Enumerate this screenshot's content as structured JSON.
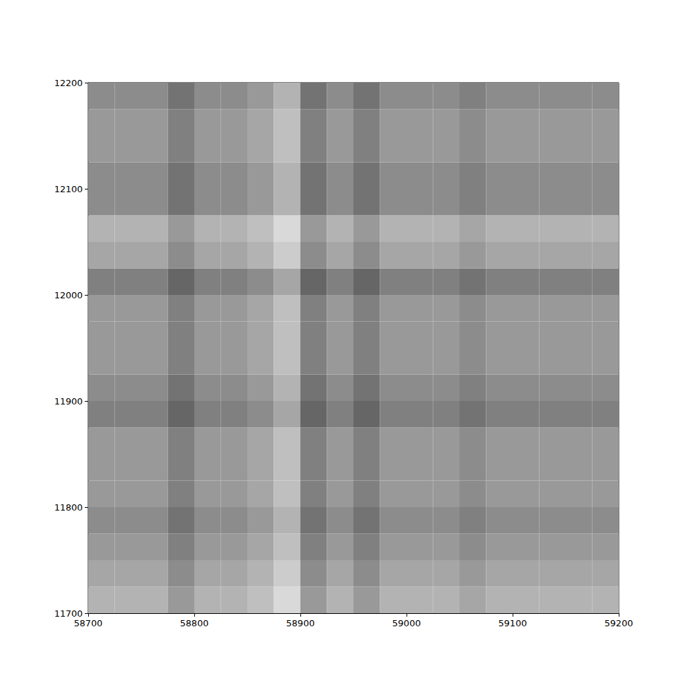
{
  "chart_data": {
    "type": "heatmap",
    "x_edges": [
      58700,
      58725,
      58750,
      58775,
      58800,
      58825,
      58850,
      58875,
      58900,
      58925,
      58950,
      58975,
      59000,
      59025,
      59050,
      59075,
      59100,
      59125,
      59150,
      59175,
      59200
    ],
    "y_edges": [
      11700,
      11725,
      11750,
      11775,
      11800,
      11825,
      11850,
      11875,
      11900,
      11925,
      11950,
      11975,
      12000,
      12025,
      12050,
      12075,
      12100,
      12125,
      12150,
      12175,
      12200
    ],
    "cells": [
      [
        0.3,
        0.3,
        0.3,
        0.4,
        0.3,
        0.3,
        0.25,
        0.15,
        0.4,
        0.3,
        0.4,
        0.3,
        0.3,
        0.3,
        0.35,
        0.3,
        0.3,
        0.3,
        0.3,
        0.3
      ],
      [
        0.35,
        0.35,
        0.35,
        0.45,
        0.35,
        0.35,
        0.3,
        0.2,
        0.45,
        0.35,
        0.45,
        0.35,
        0.35,
        0.35,
        0.4,
        0.35,
        0.35,
        0.35,
        0.35,
        0.35
      ],
      [
        0.4,
        0.4,
        0.4,
        0.5,
        0.4,
        0.4,
        0.35,
        0.25,
        0.5,
        0.4,
        0.5,
        0.4,
        0.4,
        0.4,
        0.45,
        0.4,
        0.4,
        0.4,
        0.4,
        0.4
      ],
      [
        0.45,
        0.45,
        0.45,
        0.55,
        0.45,
        0.45,
        0.4,
        0.3,
        0.55,
        0.45,
        0.55,
        0.45,
        0.45,
        0.45,
        0.5,
        0.45,
        0.45,
        0.45,
        0.45,
        0.45
      ],
      [
        0.4,
        0.4,
        0.4,
        0.5,
        0.4,
        0.4,
        0.35,
        0.25,
        0.5,
        0.4,
        0.5,
        0.4,
        0.4,
        0.4,
        0.45,
        0.4,
        0.4,
        0.4,
        0.4,
        0.4
      ],
      [
        0.4,
        0.4,
        0.4,
        0.5,
        0.4,
        0.4,
        0.35,
        0.25,
        0.5,
        0.4,
        0.5,
        0.4,
        0.4,
        0.4,
        0.45,
        0.4,
        0.4,
        0.4,
        0.4,
        0.4
      ],
      [
        0.4,
        0.4,
        0.4,
        0.5,
        0.4,
        0.4,
        0.35,
        0.25,
        0.5,
        0.4,
        0.5,
        0.4,
        0.4,
        0.4,
        0.45,
        0.4,
        0.4,
        0.4,
        0.4,
        0.4
      ],
      [
        0.5,
        0.5,
        0.5,
        0.6,
        0.5,
        0.5,
        0.45,
        0.35,
        0.6,
        0.5,
        0.6,
        0.5,
        0.5,
        0.5,
        0.55,
        0.5,
        0.5,
        0.5,
        0.5,
        0.5
      ],
      [
        0.45,
        0.45,
        0.45,
        0.55,
        0.45,
        0.45,
        0.4,
        0.3,
        0.55,
        0.45,
        0.55,
        0.45,
        0.45,
        0.45,
        0.5,
        0.45,
        0.45,
        0.45,
        0.45,
        0.45
      ],
      [
        0.4,
        0.4,
        0.4,
        0.5,
        0.4,
        0.4,
        0.35,
        0.25,
        0.5,
        0.4,
        0.5,
        0.4,
        0.4,
        0.4,
        0.45,
        0.4,
        0.4,
        0.4,
        0.4,
        0.4
      ],
      [
        0.4,
        0.4,
        0.4,
        0.5,
        0.4,
        0.4,
        0.35,
        0.25,
        0.5,
        0.4,
        0.5,
        0.4,
        0.4,
        0.4,
        0.45,
        0.4,
        0.4,
        0.4,
        0.4,
        0.4
      ],
      [
        0.4,
        0.4,
        0.4,
        0.5,
        0.4,
        0.4,
        0.35,
        0.25,
        0.5,
        0.4,
        0.5,
        0.4,
        0.4,
        0.4,
        0.45,
        0.4,
        0.4,
        0.4,
        0.4,
        0.4
      ],
      [
        0.5,
        0.5,
        0.5,
        0.6,
        0.5,
        0.5,
        0.45,
        0.35,
        0.6,
        0.5,
        0.6,
        0.5,
        0.5,
        0.5,
        0.55,
        0.5,
        0.5,
        0.5,
        0.5,
        0.5
      ],
      [
        0.35,
        0.35,
        0.35,
        0.45,
        0.35,
        0.35,
        0.3,
        0.2,
        0.45,
        0.35,
        0.45,
        0.35,
        0.35,
        0.35,
        0.4,
        0.35,
        0.35,
        0.35,
        0.35,
        0.35
      ],
      [
        0.3,
        0.3,
        0.3,
        0.4,
        0.3,
        0.3,
        0.25,
        0.15,
        0.4,
        0.3,
        0.4,
        0.3,
        0.3,
        0.3,
        0.35,
        0.3,
        0.3,
        0.3,
        0.3,
        0.3
      ],
      [
        0.45,
        0.45,
        0.45,
        0.55,
        0.45,
        0.45,
        0.4,
        0.3,
        0.55,
        0.45,
        0.55,
        0.45,
        0.45,
        0.45,
        0.5,
        0.45,
        0.45,
        0.45,
        0.45,
        0.45
      ],
      [
        0.45,
        0.45,
        0.45,
        0.55,
        0.45,
        0.45,
        0.4,
        0.3,
        0.55,
        0.45,
        0.55,
        0.45,
        0.45,
        0.45,
        0.5,
        0.45,
        0.45,
        0.45,
        0.45,
        0.45
      ],
      [
        0.4,
        0.4,
        0.4,
        0.5,
        0.4,
        0.4,
        0.35,
        0.25,
        0.5,
        0.4,
        0.5,
        0.4,
        0.4,
        0.4,
        0.45,
        0.4,
        0.4,
        0.4,
        0.4,
        0.4
      ],
      [
        0.4,
        0.4,
        0.4,
        0.5,
        0.4,
        0.4,
        0.35,
        0.25,
        0.5,
        0.4,
        0.5,
        0.4,
        0.4,
        0.4,
        0.45,
        0.4,
        0.4,
        0.4,
        0.4,
        0.4
      ],
      [
        0.45,
        0.45,
        0.45,
        0.55,
        0.45,
        0.45,
        0.4,
        0.3,
        0.55,
        0.45,
        0.55,
        0.45,
        0.45,
        0.45,
        0.5,
        0.45,
        0.45,
        0.45,
        0.45,
        0.45
      ]
    ],
    "color_range": [
      0,
      1
    ],
    "xlim": [
      58700,
      59200
    ],
    "ylim": [
      11700,
      12200
    ],
    "xticks": [
      58700,
      58800,
      58900,
      59000,
      59100,
      59200
    ],
    "yticks": [
      11700,
      11800,
      11900,
      12000,
      12100,
      12200
    ],
    "grid": false
  }
}
